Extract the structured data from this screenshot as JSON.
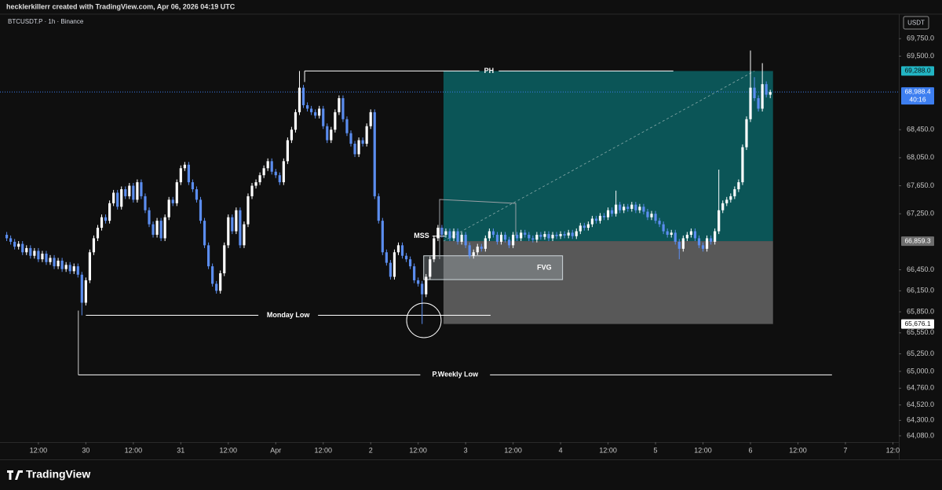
{
  "chart_data": {
    "type": "candlestick",
    "header": "hecklerkillerr created with TradingView.com, Apr 06, 2026 04:19 UTC",
    "symbol": "BTCUSDT.P · 1h · Binance",
    "currency": "USDT",
    "footer": "TradingView",
    "up_color": "#ffffff",
    "down_color": "#5b8def",
    "grid": false,
    "xlim": [
      2.3,
      229.5
    ],
    "ylim": [
      63990,
      70100
    ],
    "xticks": [
      {
        "value": 12,
        "label": "12:00"
      },
      {
        "value": 24,
        "label": "30"
      },
      {
        "value": 36,
        "label": "12:00"
      },
      {
        "value": 48,
        "label": "31"
      },
      {
        "value": 60,
        "label": "12:00"
      },
      {
        "value": 72,
        "label": "Apr"
      },
      {
        "value": 84,
        "label": "12:00"
      },
      {
        "value": 96,
        "label": "2"
      },
      {
        "value": 108,
        "label": "12:00"
      },
      {
        "value": 120,
        "label": "3"
      },
      {
        "value": 132,
        "label": "12:00"
      },
      {
        "value": 144,
        "label": "4"
      },
      {
        "value": 156,
        "label": "12:00"
      },
      {
        "value": 168,
        "label": "5"
      },
      {
        "value": 180,
        "label": "12:00"
      },
      {
        "value": 192,
        "label": "6"
      },
      {
        "value": 204,
        "label": "12:00"
      },
      {
        "value": 216,
        "label": "7"
      },
      {
        "value": 228,
        "label": "12:0"
      }
    ],
    "yticks": [
      {
        "value": 69750,
        "label": "69,750.0"
      },
      {
        "value": 69500,
        "label": "69,500.0"
      },
      {
        "value": 68450,
        "label": "68,450.0"
      },
      {
        "value": 68050,
        "label": "68,050.0"
      },
      {
        "value": 67650,
        "label": "67,650.0"
      },
      {
        "value": 67250,
        "label": "67,250.0"
      },
      {
        "value": 66450,
        "label": "66,450.0"
      },
      {
        "value": 66150,
        "label": "66,150.0"
      },
      {
        "value": 65850,
        "label": "65,850.0"
      },
      {
        "value": 65550,
        "label": "65,550.0"
      },
      {
        "value": 65250,
        "label": "65,250.0"
      },
      {
        "value": 65000,
        "label": "65,000.0"
      },
      {
        "value": 64760,
        "label": "64,760.0"
      },
      {
        "value": 64520,
        "label": "64,520.0"
      },
      {
        "value": 64300,
        "label": "64,300.0"
      },
      {
        "value": 64080,
        "label": "64,080.0"
      }
    ],
    "x": [
      4,
      5,
      6,
      7,
      8,
      9,
      10,
      11,
      12,
      13,
      14,
      15,
      16,
      17,
      18,
      19,
      20,
      21,
      22,
      23,
      24,
      25,
      26,
      27,
      28,
      29,
      30,
      31,
      32,
      33,
      34,
      35,
      36,
      37,
      38,
      39,
      40,
      41,
      42,
      43,
      44,
      45,
      46,
      47,
      48,
      49,
      50,
      51,
      52,
      53,
      54,
      55,
      56,
      57,
      58,
      59,
      60,
      61,
      62,
      63,
      64,
      65,
      66,
      67,
      68,
      69,
      70,
      71,
      72,
      73,
      74,
      75,
      76,
      77,
      78,
      79,
      80,
      81,
      82,
      83,
      84,
      85,
      86,
      87,
      88,
      89,
      90,
      91,
      92,
      93,
      94,
      95,
      96,
      97,
      98,
      99,
      100,
      101,
      102,
      103,
      104,
      105,
      106,
      107,
      108,
      109,
      110,
      111,
      112,
      113,
      114,
      115,
      116,
      117,
      118,
      119,
      120,
      121,
      122,
      123,
      124,
      125,
      126,
      127,
      128,
      129,
      130,
      131,
      132,
      133,
      134,
      135,
      136,
      137,
      138,
      139,
      140,
      141,
      142,
      143,
      144,
      145,
      146,
      147,
      148,
      149,
      150,
      151,
      152,
      153,
      154,
      155,
      156,
      157,
      158,
      159,
      160,
      161,
      162,
      163,
      164,
      165,
      166,
      167,
      168,
      169,
      170,
      171,
      172,
      173,
      174,
      175,
      176,
      177,
      178,
      179,
      180,
      181,
      182,
      183,
      184,
      185,
      186,
      187,
      188,
      189,
      190,
      191,
      192,
      193,
      194,
      195,
      196,
      197
    ],
    "open": [
      66950,
      66900,
      66850,
      66780,
      66820,
      66700,
      66760,
      66650,
      66720,
      66600,
      66680,
      66560,
      66620,
      66500,
      66580,
      66460,
      66520,
      66430,
      66500,
      66380,
      65980,
      66300,
      66700,
      66900,
      67050,
      67200,
      67150,
      67400,
      67550,
      67350,
      67600,
      67500,
      67650,
      67450,
      67700,
      67500,
      67300,
      67100,
      66950,
      67150,
      66900,
      67200,
      67450,
      67400,
      67700,
      67900,
      67950,
      67700,
      67600,
      67450,
      67150,
      66800,
      66500,
      66250,
      66150,
      66400,
      66800,
      67200,
      67000,
      67300,
      66800,
      67100,
      67500,
      67650,
      67700,
      67800,
      67900,
      68000,
      67850,
      67800,
      67700,
      68000,
      68300,
      68450,
      68700,
      69050,
      68800,
      68750,
      68700,
      68650,
      68750,
      68500,
      68300,
      68450,
      68700,
      68900,
      68600,
      68400,
      68250,
      68100,
      68300,
      68250,
      68500,
      68700,
      67500,
      67150,
      66700,
      66550,
      66350,
      66700,
      66800,
      66650,
      66600,
      66500,
      66300,
      66250,
      66100,
      66350,
      66600,
      66900,
      67050,
      66950,
      67000,
      66900,
      67000,
      66850,
      66950,
      66800,
      66650,
      66700,
      66780,
      66750,
      66900,
      67000,
      66950,
      66850,
      66950,
      66880,
      66800,
      66950,
      66900,
      66980,
      66950,
      66900,
      66880,
      66950,
      66920,
      66960,
      66900,
      66950,
      66930,
      66960,
      66940,
      66980,
      66930,
      67000,
      67080,
      67050,
      67100,
      67180,
      67150,
      67220,
      67200,
      67300,
      67250,
      67380,
      67300,
      67350,
      67320,
      67380,
      67300,
      67350,
      67280,
      67200,
      67250,
      67150,
      67100,
      67000,
      66950,
      66980,
      66850,
      66750,
      66900,
      66950,
      67000,
      66900,
      66800,
      66750,
      66900,
      66850,
      67000,
      67300,
      67400,
      67450,
      67500,
      67600,
      67700,
      68200,
      68600,
      69050,
      68900,
      68750,
      69100,
      68950
    ],
    "high": [
      66990,
      66940,
      66890,
      66860,
      66860,
      66800,
      66800,
      66760,
      66760,
      66720,
      66720,
      66660,
      66660,
      66620,
      66620,
      66560,
      66560,
      66540,
      66540,
      66420,
      66340,
      66740,
      66940,
      67090,
      67240,
      67240,
      67440,
      67590,
      67590,
      67640,
      67640,
      67690,
      67690,
      67740,
      67740,
      67540,
      67340,
      67140,
      67190,
      67190,
      67240,
      67490,
      67490,
      67740,
      67940,
      67990,
      67990,
      67740,
      67640,
      67490,
      67190,
      66840,
      66540,
      66290,
      66440,
      66840,
      67240,
      67240,
      67340,
      67340,
      67140,
      67540,
      67690,
      67740,
      67840,
      67940,
      68040,
      68040,
      67890,
      67840,
      68040,
      68340,
      68490,
      68740,
      69288,
      69090,
      68840,
      68790,
      68740,
      68790,
      68790,
      68540,
      68490,
      68740,
      68940,
      68940,
      68640,
      68440,
      68290,
      68340,
      68340,
      68540,
      68740,
      68740,
      67540,
      67190,
      66740,
      66590,
      66740,
      66840,
      66840,
      66690,
      66640,
      66540,
      66340,
      66290,
      66390,
      66640,
      66940,
      67090,
      67090,
      67040,
      67040,
      67040,
      67040,
      66990,
      66990,
      66840,
      66740,
      66820,
      66820,
      66940,
      67040,
      67040,
      66990,
      66990,
      66990,
      66920,
      66990,
      66990,
      67020,
      67020,
      66990,
      66940,
      66990,
      66990,
      67000,
      67000,
      66990,
      66990,
      67000,
      67000,
      67020,
      67020,
      67040,
      67120,
      67120,
      67140,
      67220,
      67220,
      67260,
      67260,
      67340,
      67340,
      67580,
      67420,
      67390,
      67390,
      67420,
      67420,
      67390,
      67390,
      67320,
      67290,
      67290,
      67190,
      67140,
      67040,
      67020,
      67020,
      66890,
      66940,
      66990,
      67040,
      67040,
      66940,
      66840,
      66940,
      66940,
      67040,
      67880,
      67440,
      67490,
      67540,
      67640,
      67740,
      68240,
      68640,
      69580,
      69200,
      68940,
      69400,
      69140,
      69020
    ],
    "low": [
      66860,
      66810,
      66740,
      66740,
      66660,
      66660,
      66610,
      66610,
      66560,
      66560,
      66520,
      66520,
      66460,
      66460,
      66420,
      66420,
      66390,
      66390,
      66340,
      65800,
      65940,
      66260,
      66660,
      66860,
      67010,
      67110,
      67110,
      67360,
      67310,
      67310,
      67460,
      67460,
      67410,
      67410,
      67460,
      67260,
      67060,
      66910,
      66910,
      66860,
      66860,
      67160,
      67360,
      67360,
      67660,
      67860,
      67660,
      67560,
      67410,
      67110,
      66760,
      66460,
      66210,
      66110,
      66110,
      66360,
      66760,
      66960,
      66960,
      66760,
      66760,
      67060,
      67460,
      67610,
      67660,
      67760,
      67860,
      67810,
      67760,
      67660,
      67660,
      67960,
      68260,
      68410,
      68660,
      68760,
      68710,
      68660,
      68610,
      68610,
      68460,
      68260,
      68260,
      68410,
      68660,
      68560,
      68360,
      68210,
      68060,
      68060,
      68210,
      68210,
      68460,
      67460,
      67110,
      66660,
      66510,
      66310,
      66310,
      66660,
      66610,
      66560,
      66460,
      66260,
      66210,
      65676,
      66060,
      66310,
      66560,
      66860,
      66910,
      66910,
      66860,
      66860,
      66810,
      66810,
      66760,
      66610,
      66610,
      66660,
      66710,
      66710,
      66860,
      66910,
      66810,
      66810,
      66840,
      66760,
      66760,
      66860,
      66860,
      66910,
      66860,
      66840,
      66840,
      66880,
      66880,
      66860,
      66860,
      66890,
      66890,
      66900,
      66900,
      66890,
      66890,
      66960,
      67010,
      67010,
      67060,
      67110,
      67110,
      67160,
      67160,
      67210,
      67210,
      67260,
      67260,
      67280,
      67280,
      67260,
      67260,
      67240,
      67160,
      67160,
      67110,
      67060,
      66960,
      66910,
      66910,
      66810,
      66600,
      66710,
      66860,
      66910,
      66860,
      66760,
      66710,
      66710,
      66810,
      66810,
      66960,
      67260,
      67360,
      67410,
      67460,
      67560,
      67660,
      68160,
      68560,
      68860,
      68710,
      68710,
      68910,
      68900
    ],
    "close": [
      66900,
      66850,
      66780,
      66820,
      66700,
      66760,
      66650,
      66720,
      66600,
      66680,
      66560,
      66620,
      66500,
      66580,
      66460,
      66520,
      66430,
      66500,
      66380,
      65980,
      66300,
      66700,
      66900,
      67050,
      67200,
      67150,
      67400,
      67550,
      67350,
      67600,
      67500,
      67650,
      67450,
      67700,
      67500,
      67300,
      67100,
      66950,
      67150,
      66900,
      67200,
      67450,
      67400,
      67700,
      67900,
      67950,
      67700,
      67600,
      67450,
      67150,
      66800,
      66500,
      66250,
      66150,
      66400,
      66800,
      67200,
      67000,
      67300,
      66800,
      67100,
      67500,
      67650,
      67700,
      67800,
      67900,
      68000,
      67850,
      67800,
      67700,
      68000,
      68300,
      68450,
      68700,
      69050,
      68800,
      68750,
      68700,
      68650,
      68750,
      68500,
      68300,
      68450,
      68700,
      68900,
      68600,
      68400,
      68250,
      68100,
      68300,
      68250,
      68500,
      68700,
      67500,
      67150,
      66700,
      66550,
      66350,
      66700,
      66800,
      66650,
      66600,
      66500,
      66300,
      66250,
      66100,
      66350,
      66600,
      66900,
      67050,
      66950,
      67000,
      66900,
      67000,
      66850,
      66950,
      66800,
      66650,
      66700,
      66780,
      66750,
      66900,
      67000,
      66950,
      66850,
      66950,
      66880,
      66800,
      66950,
      66900,
      66980,
      66950,
      66900,
      66880,
      66950,
      66920,
      66960,
      66900,
      66950,
      66930,
      66960,
      66940,
      66980,
      66930,
      67000,
      67080,
      67050,
      67100,
      67180,
      67150,
      67220,
      67200,
      67300,
      67250,
      67380,
      67300,
      67350,
      67320,
      67380,
      67300,
      67350,
      67280,
      67200,
      67250,
      67150,
      67100,
      67000,
      66950,
      66980,
      66850,
      66750,
      66900,
      66950,
      67000,
      66900,
      66800,
      66750,
      66900,
      66850,
      67000,
      67300,
      67400,
      67450,
      67500,
      67600,
      67700,
      68200,
      68600,
      69050,
      68900,
      68750,
      69100,
      68950,
      68988
    ],
    "position": {
      "from": 114.4,
      "to": 197.7,
      "target": {
        "value": 69288.0,
        "label": "69,288.0"
      },
      "entry": {
        "value": 66859.3,
        "label": "66,859.3"
      },
      "stop": {
        "value": 65676.1,
        "label": "65,676.1"
      },
      "target_color": "#0b5557",
      "stop_color": "#585858"
    },
    "last_price": {
      "value": 68988.4,
      "label": "68,988.4",
      "countdown": "40:16"
    },
    "levels": [
      {
        "text": "PH",
        "value": 69288,
        "from": 79.3,
        "to": 172.5
      },
      {
        "text": "Monday Low",
        "value": 65800,
        "from": 24,
        "to": 126.3
      },
      {
        "text": "P.Weekly Low",
        "value": 64950,
        "from": 22.1,
        "to": 212.6
      },
      {
        "text": "MSS",
        "value": 66930,
        "from": 110,
        "to": 114
      }
    ],
    "fvg": {
      "text": "FVG",
      "top": 66650,
      "bottom": 66310,
      "from": 109.4,
      "to": 144.5
    }
  }
}
